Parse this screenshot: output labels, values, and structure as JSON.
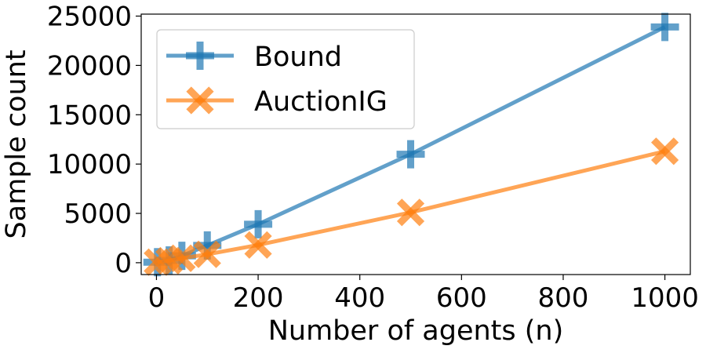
{
  "chart_data": {
    "type": "line",
    "xlabel": "Number of agents (n)",
    "ylabel": "Sample count",
    "xlim": [
      -30,
      1050
    ],
    "ylim": [
      -1200,
      25200
    ],
    "xticks": [
      0,
      200,
      400,
      600,
      800,
      1000
    ],
    "xtick_labels": [
      "0",
      "200",
      "400",
      "600",
      "800",
      "1000"
    ],
    "yticks": [
      0,
      5000,
      10000,
      15000,
      20000,
      25000
    ],
    "ytick_labels": [
      "0",
      "5000",
      "10000",
      "15000",
      "20000",
      "25000"
    ],
    "grid": false,
    "legend": "upper-left",
    "series": [
      {
        "name": "Bound",
        "marker": "plus",
        "color": "#1f77b4",
        "x": [
          2,
          25,
          50,
          100,
          200,
          500,
          1000
        ],
        "y": [
          50,
          230,
          700,
          1750,
          3900,
          11000,
          23900
        ]
      },
      {
        "name": "AuctionIG",
        "marker": "x",
        "color": "#ff7f0e",
        "x": [
          2,
          25,
          50,
          100,
          200,
          500,
          1000
        ],
        "y": [
          60,
          200,
          450,
          850,
          1800,
          5100,
          11300
        ]
      }
    ]
  }
}
